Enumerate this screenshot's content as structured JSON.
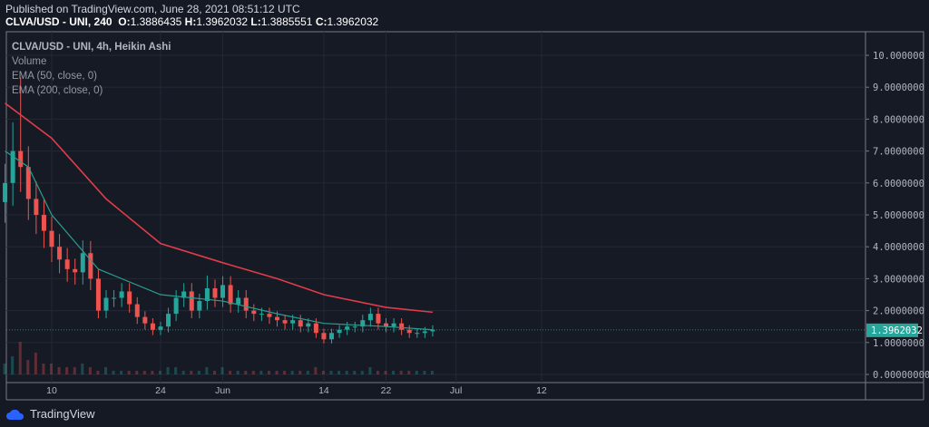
{
  "header": {
    "published": "Published on TradingView.com, June 28, 2021 08:51:12 UTC",
    "symbol": "CLVA/USD - UNI, 240",
    "o_label": "O:",
    "o": "1.3886435",
    "h_label": "H:",
    "h": "1.3962032",
    "l_label": "L:",
    "l": "1.3885551",
    "c_label": "C:",
    "c": "1.3962032"
  },
  "legend": {
    "title": "CLVA/USD - UNI, 4h, Heikin Ashi",
    "volume": "Volume",
    "ema50": "EMA (50, close, 0)",
    "ema200": "EMA (200, close, 0)"
  },
  "footer": {
    "brand": "TradingView"
  },
  "colors": {
    "up": "#26a69a",
    "down": "#ef5350",
    "ema50": "#2a9d8f",
    "ema200": "#e03c4a",
    "bg": "#151924"
  },
  "chart_data": {
    "type": "candlestick",
    "title": "CLVA/USD - UNI, 4h, Heikin Ashi",
    "ylim": [
      0,
      10.5
    ],
    "yticks": [
      "10.000000",
      "9.0000000",
      "8.0000000",
      "7.0000000",
      "6.0000000",
      "5.0000000",
      "4.0000000",
      "3.0000000",
      "2.0000000",
      "1.0000000",
      "0.00000000"
    ],
    "ytick_values": [
      10,
      9,
      8,
      7,
      6,
      5,
      4,
      3,
      2,
      1,
      0
    ],
    "last_price": "1.3962032",
    "last_value": 1.3962032,
    "xticks": [
      {
        "label": "10",
        "day": 6
      },
      {
        "label": "24",
        "day": 20
      },
      {
        "label": "Jun",
        "day": 28
      },
      {
        "label": "14",
        "day": 41
      },
      {
        "label": "22",
        "day": 49
      },
      {
        "label": "Jul",
        "day": 58
      },
      {
        "label": "12",
        "day": 69
      }
    ],
    "start": "May 4",
    "closes": [
      6.0,
      7.0,
      6.5,
      5.5,
      5.0,
      4.5,
      4.0,
      3.6,
      3.3,
      3.2,
      3.8,
      3.0,
      2.0,
      2.4,
      2.4,
      2.6,
      2.2,
      1.8,
      1.6,
      1.4,
      1.5,
      1.9,
      2.4,
      2.6,
      2.0,
      2.3,
      2.7,
      2.4,
      2.8,
      2.2,
      2.4,
      2.0,
      1.9,
      1.9,
      1.8,
      1.7,
      1.6,
      1.7,
      1.5,
      1.6,
      1.3,
      1.1,
      1.3,
      1.4,
      1.5,
      1.5,
      1.7,
      1.9,
      1.6,
      1.5,
      1.6,
      1.4,
      1.3,
      1.3,
      1.35,
      1.4
    ],
    "highs_extra": {
      "2": 9.3,
      "1": 7.9,
      "10": 4.2,
      "26": 3.1
    },
    "volume": [
      3,
      5,
      9,
      4,
      6,
      3,
      3,
      2,
      2,
      2,
      3,
      2,
      1,
      2,
      1,
      1,
      1,
      1,
      1,
      1,
      1,
      2,
      2,
      1,
      1,
      1,
      2,
      1,
      2,
      1,
      1,
      1,
      1,
      1,
      1,
      1,
      1,
      1,
      1,
      1,
      2,
      1,
      1,
      1,
      1,
      1,
      1,
      2,
      1,
      1,
      1,
      1,
      1,
      1,
      1,
      1
    ],
    "ema50": [
      [
        0,
        7.0
      ],
      [
        3,
        6.5
      ],
      [
        6,
        5.0
      ],
      [
        12,
        3.3
      ],
      [
        20,
        2.5
      ],
      [
        28,
        2.3
      ],
      [
        35,
        1.9
      ],
      [
        41,
        1.6
      ],
      [
        49,
        1.5
      ],
      [
        55,
        1.4
      ]
    ],
    "ema200": [
      [
        0,
        8.5
      ],
      [
        6,
        7.4
      ],
      [
        13,
        5.5
      ],
      [
        20,
        4.1
      ],
      [
        28,
        3.5
      ],
      [
        35,
        3.0
      ],
      [
        41,
        2.5
      ],
      [
        49,
        2.1
      ],
      [
        55,
        1.95
      ]
    ]
  }
}
